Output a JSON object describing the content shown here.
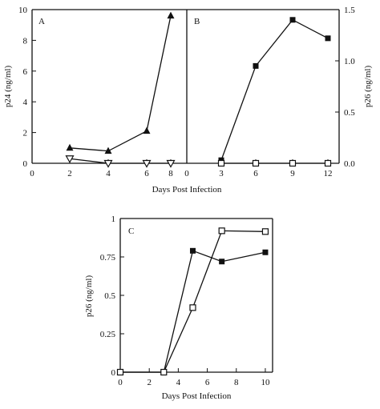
{
  "chart_data": [
    {
      "panel": "A",
      "type": "line",
      "xlabel": "Days Post Infection",
      "ylabel": "p24 (ng/ml)",
      "xlim": [
        0,
        8.5
      ],
      "ylim": [
        0,
        10
      ],
      "xticks": [
        "0",
        "2",
        "4",
        "6",
        "8"
      ],
      "yticks": [
        "0",
        "2",
        "4",
        "6",
        "8",
        "10"
      ],
      "series": [
        {
          "marker": "filled-triangle",
          "x": [
            2,
            4,
            6,
            8
          ],
          "y": [
            1.0,
            0.8,
            2.1,
            9.6
          ]
        },
        {
          "marker": "open-triangle-down",
          "x": [
            2,
            4,
            6,
            8
          ],
          "y": [
            0.3,
            0.0,
            0.0,
            0.0
          ]
        }
      ]
    },
    {
      "panel": "B",
      "type": "line",
      "xlabel": "Days Post Infection",
      "ylabel": "p26 (ng/ml)",
      "xlim": [
        0,
        13
      ],
      "ylim": [
        0,
        1.5
      ],
      "xticks": [
        "0",
        "3",
        "6",
        "9",
        "12"
      ],
      "yticks": [
        "0.0",
        "0.5",
        "1.0",
        "1.5"
      ],
      "series": [
        {
          "marker": "filled-square",
          "x": [
            3,
            6,
            9,
            12
          ],
          "y": [
            0.03,
            0.95,
            1.4,
            1.22
          ]
        },
        {
          "marker": "open-square",
          "x": [
            3,
            6,
            9,
            12
          ],
          "y": [
            0.0,
            0.0,
            0.0,
            0.0
          ]
        }
      ]
    },
    {
      "panel": "C",
      "type": "line",
      "xlabel": "Days Post Infection",
      "ylabel": "p26 (ng/ml)",
      "xlim": [
        0,
        10.5
      ],
      "ylim": [
        0,
        1
      ],
      "xticks": [
        "0",
        "2",
        "4",
        "6",
        "8",
        "10"
      ],
      "yticks": [
        "0",
        "0.25",
        "0.5",
        "0.75",
        "1"
      ],
      "series": [
        {
          "marker": "filled-square",
          "x": [
            0,
            3,
            5,
            7,
            10
          ],
          "y": [
            0,
            0,
            0.79,
            0.72,
            0.78
          ]
        },
        {
          "marker": "open-square",
          "x": [
            0,
            3,
            5,
            7,
            10
          ],
          "y": [
            0,
            0,
            0.42,
            0.92,
            0.915
          ]
        }
      ]
    }
  ],
  "labels": {
    "panel_a": "A",
    "panel_b": "B",
    "panel_c": "C",
    "xlabel_top": "Days Post Infection",
    "xlabel_bottom": "Days Post Infection",
    "ylabel_a": "p24 (ng/ml)",
    "ylabel_b": "p26 (ng/ml)",
    "ylabel_c": "p26 (ng/ml)"
  }
}
